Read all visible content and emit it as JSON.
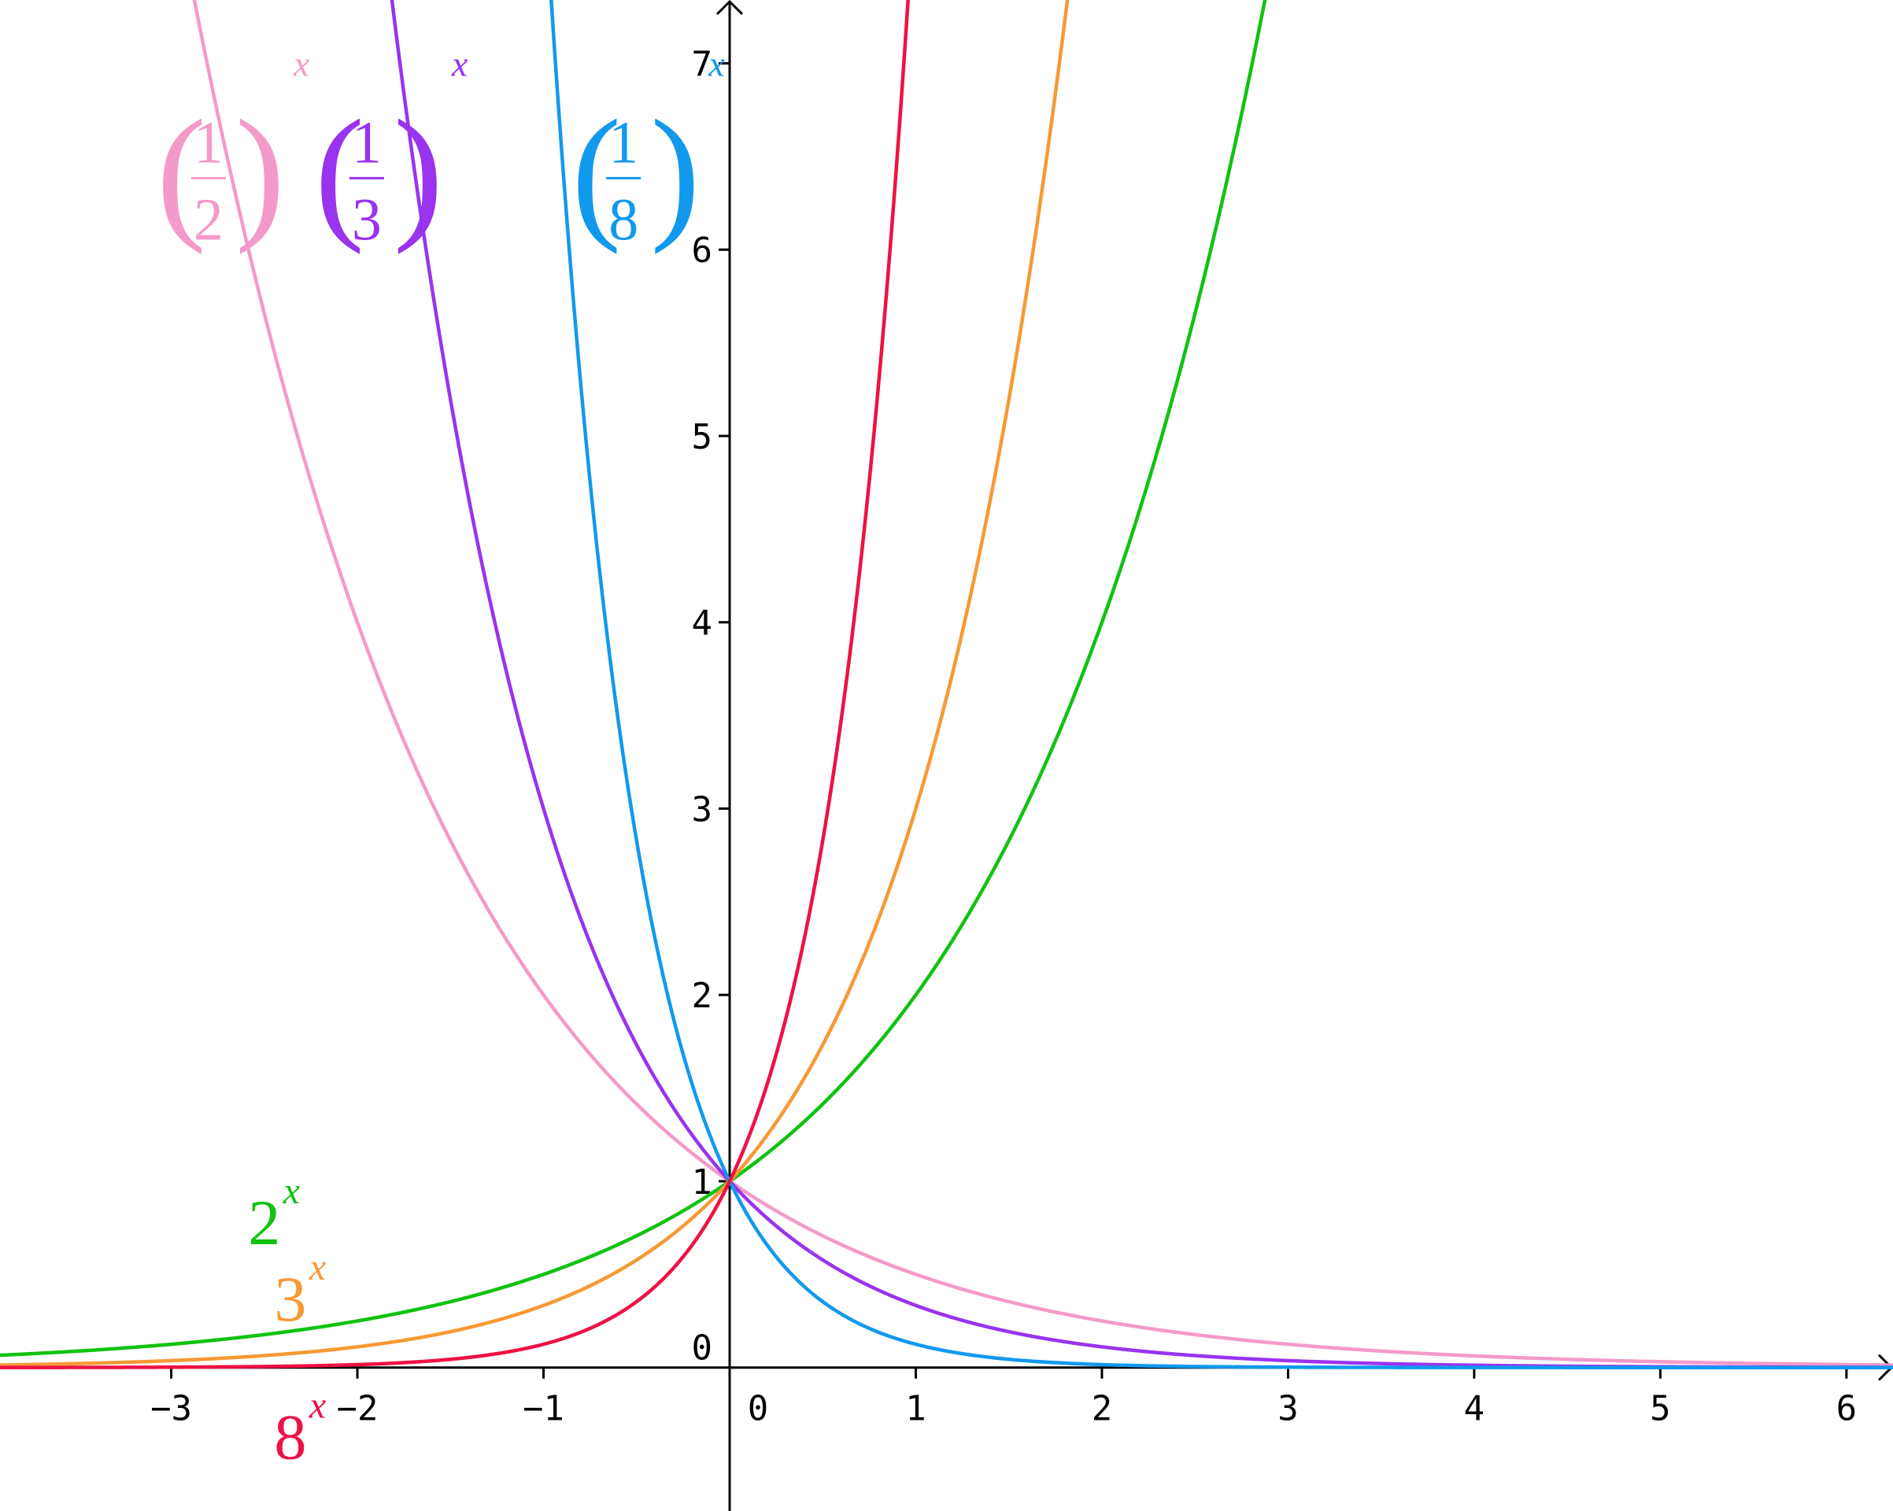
{
  "chart_data": {
    "type": "line",
    "title": "",
    "xlabel": "",
    "ylabel": "",
    "xlim": [
      -3.92,
      6.25
    ],
    "ylim": [
      -0.77,
      7.34
    ],
    "grid": false,
    "x_ticks": [
      {
        "value": -3,
        "label": "−3"
      },
      {
        "value": -2,
        "label": "−2"
      },
      {
        "value": -1,
        "label": "−1"
      },
      {
        "value": 0,
        "label": "0"
      },
      {
        "value": 1,
        "label": "1"
      },
      {
        "value": 2,
        "label": "2"
      },
      {
        "value": 3,
        "label": "3"
      },
      {
        "value": 4,
        "label": "4"
      },
      {
        "value": 5,
        "label": "5"
      },
      {
        "value": 6,
        "label": "6"
      }
    ],
    "y_ticks": [
      {
        "value": 0,
        "label": "0"
      },
      {
        "value": 1,
        "label": "1"
      },
      {
        "value": 2,
        "label": "2"
      },
      {
        "value": 3,
        "label": "3"
      },
      {
        "value": 4,
        "label": "4"
      },
      {
        "value": 5,
        "label": "5"
      },
      {
        "value": 6,
        "label": "6"
      },
      {
        "value": 7,
        "label": "7"
      }
    ],
    "series": [
      {
        "key": "half",
        "base": 0.5,
        "color": "#f49ac8",
        "label": {
          "kind": "fraction",
          "num": "1",
          "den": "2",
          "exp": "x"
        },
        "label_anchor": {
          "x": -2.8,
          "y": 6.35
        }
      },
      {
        "key": "third",
        "base": 0.3333333333,
        "color": "#9933ee",
        "label": {
          "kind": "fraction",
          "num": "1",
          "den": "3",
          "exp": "x"
        },
        "label_anchor": {
          "x": -1.95,
          "y": 6.35
        }
      },
      {
        "key": "eighth",
        "base": 0.125,
        "color": "#1199ee",
        "label": {
          "kind": "fraction",
          "num": "1",
          "den": "8",
          "exp": "x"
        },
        "label_anchor": {
          "x": -0.57,
          "y": 6.35
        }
      },
      {
        "key": "two",
        "base": 2,
        "color": "#11c211",
        "label": {
          "kind": "power",
          "base_text": "2",
          "exp": "x"
        },
        "label_anchor": {
          "x": -2.5,
          "y": 0.78
        }
      },
      {
        "key": "three",
        "base": 3,
        "color": "#f79935",
        "label": {
          "kind": "power",
          "base_text": "3",
          "exp": "x"
        },
        "label_anchor": {
          "x": -2.36,
          "y": 0.37
        }
      },
      {
        "key": "eight",
        "base": 8,
        "color": "#ee1144",
        "label": {
          "kind": "power",
          "base_text": "8",
          "exp": "x"
        },
        "label_anchor": {
          "x": -2.36,
          "y": -0.37
        }
      }
    ]
  }
}
